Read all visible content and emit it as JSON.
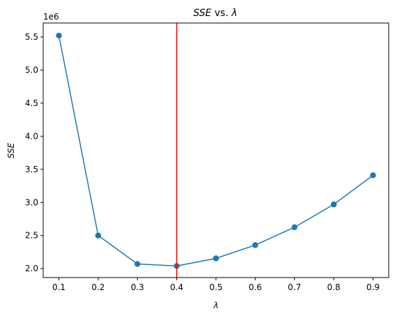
{
  "chart_data": {
    "type": "line",
    "title_parts": {
      "sse": "SSE",
      "vs": " vs. ",
      "lambda": "λ"
    },
    "xlabel": "λ",
    "ylabel": "SSE",
    "y_offset_label": "1e6",
    "x": [
      0.1,
      0.2,
      0.3,
      0.4,
      0.5,
      0.6,
      0.7,
      0.8,
      0.9
    ],
    "series": [
      {
        "values": [
          5.52,
          2.5,
          2.07,
          2.04,
          2.155,
          2.355,
          2.625,
          2.97,
          3.41
        ]
      }
    ],
    "xlim": [
      0.06,
      0.94
    ],
    "ylim": [
      1.865,
      5.71
    ],
    "x_ticks": [
      0.1,
      0.2,
      0.3,
      0.4,
      0.5,
      0.6,
      0.7,
      0.8,
      0.9
    ],
    "x_tick_labels": [
      "0.1",
      "0.2",
      "0.3",
      "0.4",
      "0.5",
      "0.6",
      "0.7",
      "0.8",
      "0.9"
    ],
    "y_ticks": [
      2.0,
      2.5,
      3.0,
      3.5,
      4.0,
      4.5,
      5.0,
      5.5
    ],
    "y_tick_labels": [
      "2.0",
      "2.5",
      "3.0",
      "3.5",
      "4.0",
      "4.5",
      "5.0",
      "5.5"
    ],
    "vline_x": 0.4,
    "grid": false,
    "colors": {
      "series": "#1f77b4",
      "vline": "#ff0000"
    }
  }
}
